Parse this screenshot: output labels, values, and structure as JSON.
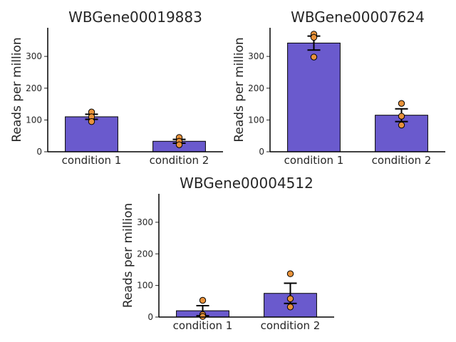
{
  "chart_data": [
    {
      "type": "bar",
      "title": "WBGene00019883",
      "ylabel": "Reads per million",
      "categories": [
        "condition 1",
        "condition 2"
      ],
      "values": [
        110,
        33
      ],
      "error": [
        8,
        6
      ],
      "points": [
        [
          125,
          110,
          95
        ],
        [
          45,
          33,
          22
        ]
      ],
      "yticks": [
        0,
        100,
        200,
        300
      ],
      "ylim": [
        0,
        390
      ]
    },
    {
      "type": "bar",
      "title": "WBGene00007624",
      "ylabel": "Reads per million",
      "categories": [
        "condition 1",
        "condition 2"
      ],
      "values": [
        342,
        115
      ],
      "error": [
        22,
        20
      ],
      "points": [
        [
          370,
          360,
          298
        ],
        [
          152,
          112,
          84
        ]
      ],
      "yticks": [
        0,
        100,
        200,
        300
      ],
      "ylim": [
        0,
        390
      ]
    },
    {
      "type": "bar",
      "title": "WBGene00004512",
      "ylabel": "Reads per million",
      "categories": [
        "condition 1",
        "condition 2"
      ],
      "values": [
        20,
        75
      ],
      "error": [
        16,
        32
      ],
      "points": [
        [
          53,
          8,
          2
        ],
        [
          137,
          58,
          32
        ]
      ],
      "yticks": [
        0,
        100,
        200,
        300
      ],
      "ylim": [
        0,
        390
      ]
    }
  ],
  "colors": {
    "bar_fill": "#6a5acd",
    "point_fill": "#e8923a",
    "edge": "#000000"
  }
}
